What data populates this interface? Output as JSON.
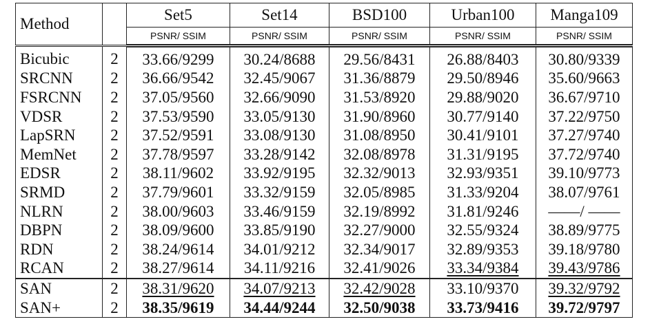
{
  "table": {
    "header": [
      "Method",
      "Set5",
      "Set14",
      "BSD100",
      "Urban100",
      "Manga109"
    ],
    "subheader": [
      "PSNR/ SSIM",
      "PSNR/ SSIM",
      "PSNR/ SSIM",
      "PSNR/ SSIM",
      "PSNR/ SSIM"
    ],
    "rows": [
      [
        "Bicubic",
        "2",
        "33.66/9299",
        "30.24/8688",
        "29.56/8431",
        "26.88/8403",
        "30.80/9339"
      ],
      [
        "SRCNN",
        "2",
        "36.66/9542",
        "32.45/9067",
        "31.36/8879",
        "29.50/8946",
        "35.60/9663"
      ],
      [
        "FSRCNN",
        "2",
        "37.05/9560",
        "32.66/9090",
        "31.53/8920",
        "29.88/9020",
        "36.67/9710"
      ],
      [
        "VDSR",
        "2",
        "37.53/9590",
        "33.05/9130",
        "31.90/8960",
        "30.77/9140",
        "37.22/9750"
      ],
      [
        "LapSRN",
        "2",
        "37.52/9591",
        "33.08/9130",
        "31.08/8950",
        "30.41/9101",
        "37.27/9740"
      ],
      [
        "MemNet",
        "2",
        "37.78/9597",
        "33.28/9142",
        "32.08/8978",
        "31.31/9195",
        "37.72/9740"
      ],
      [
        "EDSR",
        "2",
        "38.11/9602",
        "33.92/9195",
        "32.32/9013",
        "32.93/9351",
        "39.10/9773"
      ],
      [
        "SRMD",
        "2",
        "37.79/9601",
        "33.32/9159",
        "32.05/8985",
        "31.33/9204",
        "38.07/9761"
      ],
      [
        "NLRN",
        "2",
        "38.00/9603",
        "33.46/9159",
        "32.19/8992",
        "31.81/9246",
        "——/ ——"
      ],
      [
        "DBPN",
        "2",
        "38.09/9600",
        "33.85/9190",
        "32.27/9000",
        "32.55/9324",
        "38.89/9775"
      ],
      [
        "RDN",
        "2",
        "38.24/9614",
        "34.01/9212",
        "32.34/9017",
        "32.89/9353",
        "39.18/9780"
      ],
      [
        "RCAN",
        "2",
        "38.27/9614",
        "34.11/9216",
        "32.41/9026",
        "33.34/9384",
        "39.43/9786"
      ],
      [
        "SAN",
        "2",
        "38.31/9620",
        "34.07/9213",
        "32.42/9028",
        "33.10/9370",
        "39.32/9792"
      ],
      [
        "SAN+",
        "2",
        "38.35/9619",
        "34.44/9244",
        "32.50/9038",
        "33.73/9416",
        "39.72/9797"
      ]
    ]
  }
}
